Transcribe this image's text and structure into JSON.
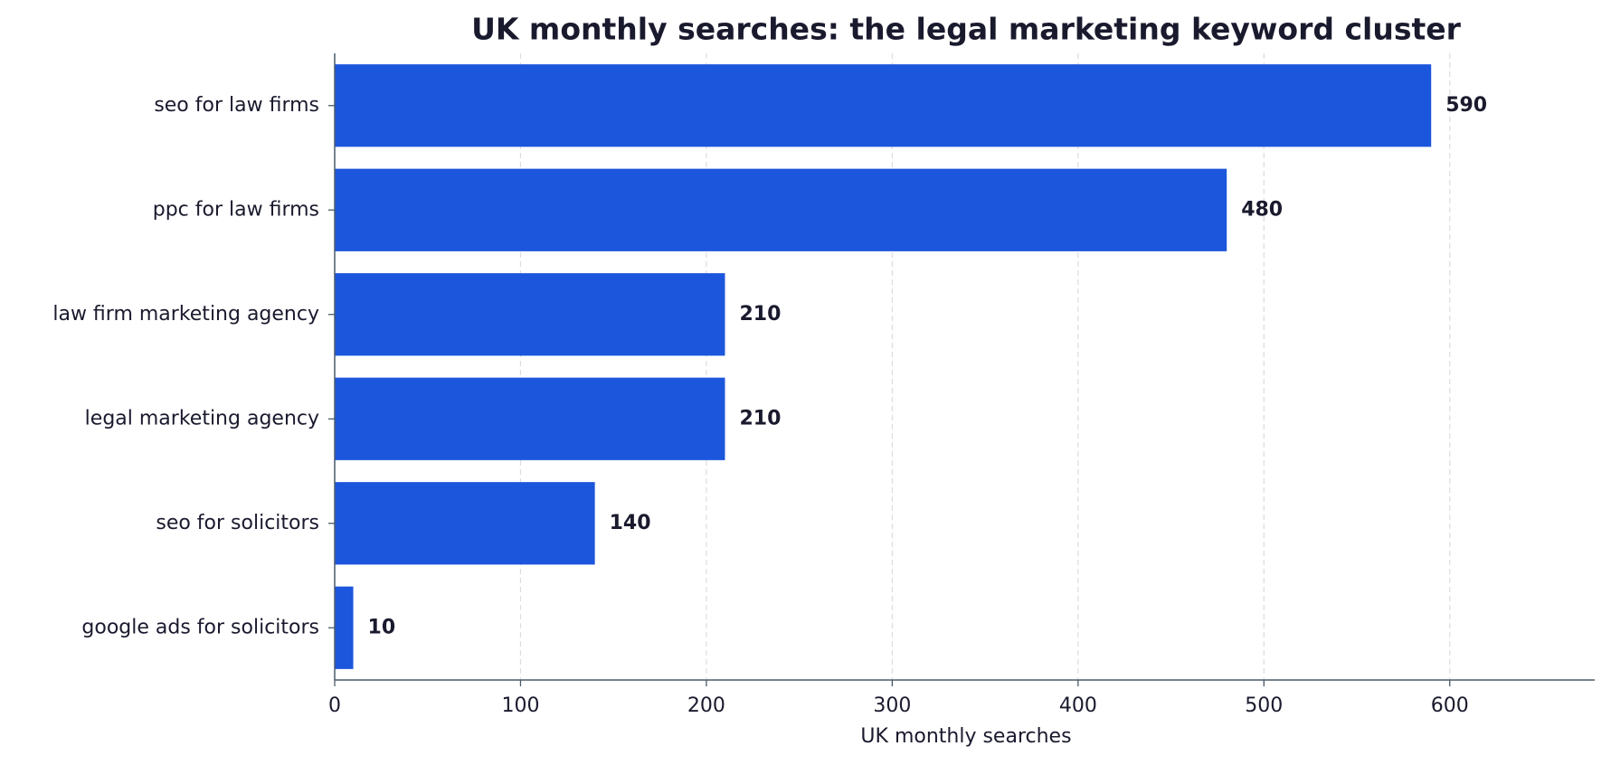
{
  "chart_data": {
    "type": "barh",
    "title": "UK monthly searches: the legal marketing keyword cluster",
    "categories": [
      "seo for law firms",
      "ppc for law firms",
      "law firm marketing agency",
      "legal marketing agency",
      "seo for solicitors",
      "google ads for solicitors"
    ],
    "values": [
      590,
      480,
      210,
      210,
      140,
      10
    ],
    "color": "#1c56dc",
    "xlabel": "UK monthly searches",
    "xlim": [
      0,
      678
    ],
    "xticks": [
      0,
      100,
      200,
      300,
      400,
      500,
      600
    ],
    "grid": true
  }
}
